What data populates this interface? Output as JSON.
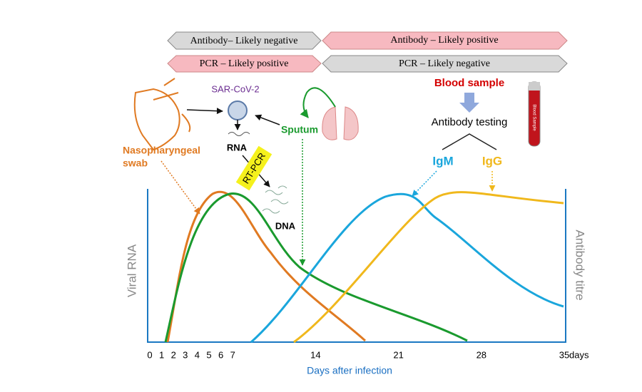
{
  "banners": {
    "antibody_negative": "Antibody– Likely negative",
    "antibody_positive": "Antibody – Likely positive",
    "pcr_positive": "PCR – Likely positive",
    "pcr_negative": "PCR – Likely negative"
  },
  "labels": {
    "virus": "SAR-CoV-2",
    "rna": "RNA",
    "rt_pcr": "RT-PCR",
    "dna": "DNA",
    "sputum": "Sputum",
    "swab_1": "Nasopharyngeal",
    "swab_2": "swab",
    "blood_sample": "Blood sample",
    "antibody_testing": "Antibody testing",
    "igm": "IgM",
    "igg": "IgG",
    "tube": "Blood Sample"
  },
  "axes": {
    "left_title": "Viral RNA",
    "right_title": "Antibody titre",
    "x_title": "Days after infection",
    "x_unit": "days",
    "x_ticks": [
      0,
      1,
      2,
      3,
      4,
      5,
      6,
      7,
      14,
      21,
      28,
      35
    ]
  }
}
